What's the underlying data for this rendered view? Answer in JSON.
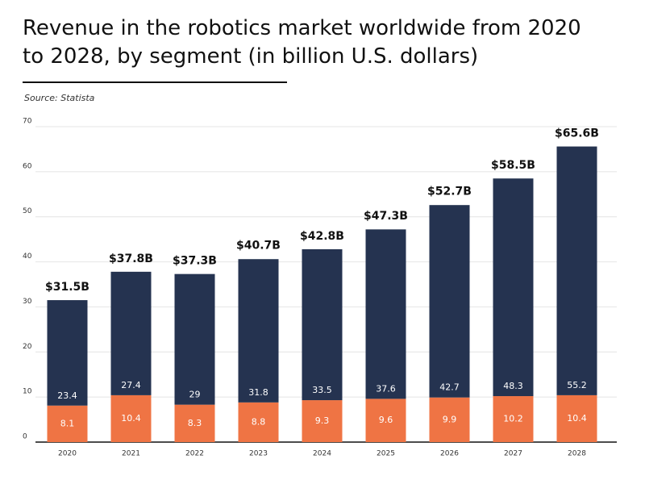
{
  "chart_data": {
    "type": "stacked-bar",
    "title": "Revenue in the robotics market worldwide from 2020 to 2028, by segment (in billion U.S. dollars)",
    "source": "Source: Statista",
    "categories": [
      "2020",
      "2021",
      "2022",
      "2023",
      "2024",
      "2025",
      "2026",
      "2027",
      "2028"
    ],
    "series": [
      {
        "color": "#ef7444",
        "values": [
          8.1,
          10.4,
          8.3,
          8.8,
          9.3,
          9.6,
          9.9,
          10.2,
          10.4
        ]
      },
      {
        "color": "#253350",
        "values": [
          23.4,
          27.4,
          29,
          31.8,
          33.5,
          37.6,
          42.7,
          48.3,
          55.2
        ]
      }
    ],
    "totals": {
      "values": [
        31.5,
        37.8,
        37.3,
        40.7,
        42.8,
        47.3,
        52.7,
        58.5,
        65.6
      ],
      "value_labels": [
        "$31.5B",
        "$37.8B",
        "$37.3B",
        "$40.7B",
        "$42.8B",
        "$47.3B",
        "$52.7B",
        "$58.5B",
        "$65.6B"
      ]
    },
    "ylim": [
      0,
      70
    ],
    "yticks": [
      0,
      10,
      20,
      30,
      40,
      50,
      60,
      70
    ],
    "grid": true
  }
}
